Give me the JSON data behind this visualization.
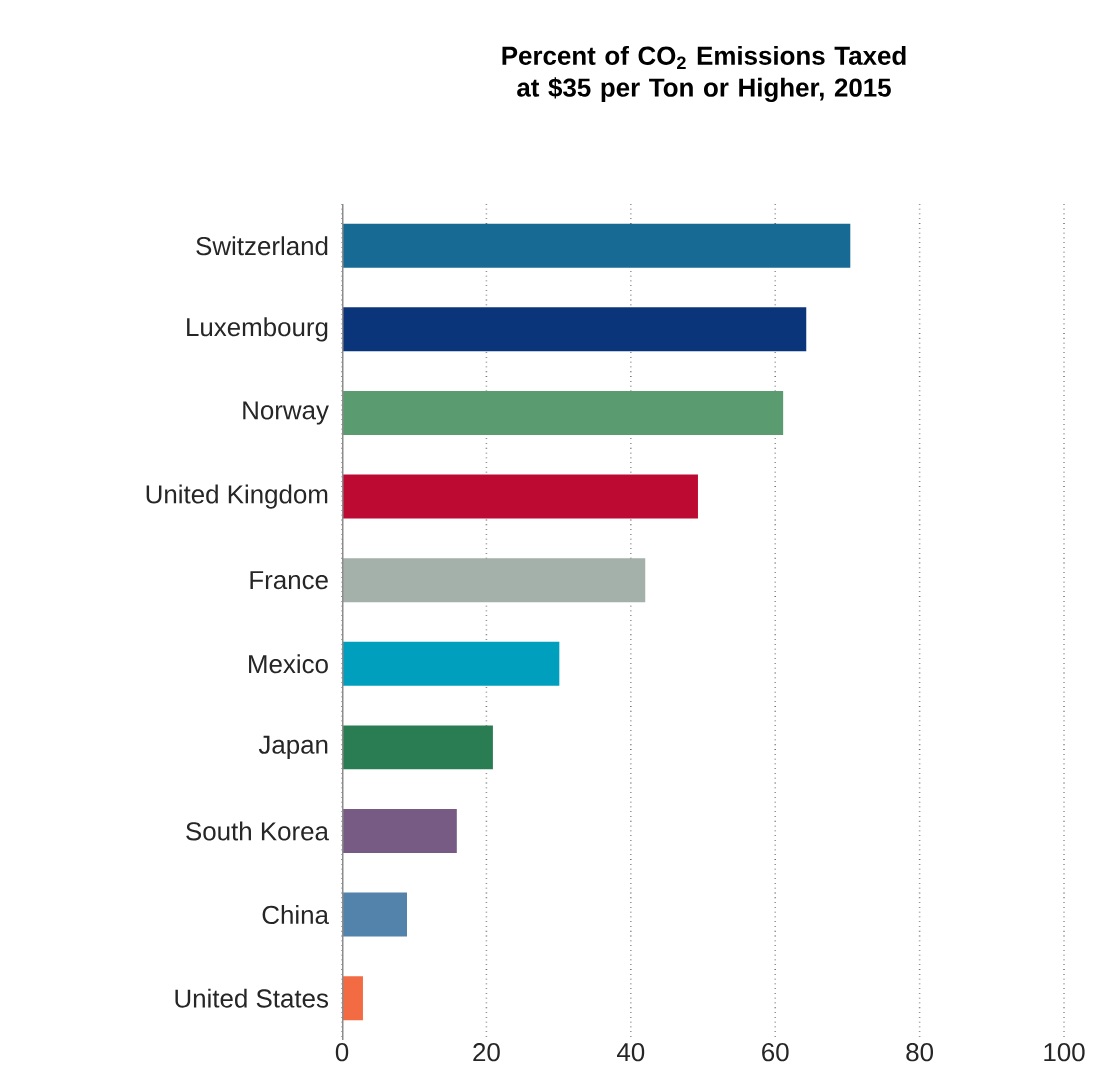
{
  "chart_data": {
    "type": "bar",
    "orientation": "horizontal",
    "title": "Percent of CO$_{2}$ Emissions Taxed at $35 per Ton or Higher, 2015",
    "categories": [
      "Switzerland",
      "Luxembourg",
      "Norway",
      "United Kingdom",
      "France",
      "Mexico",
      "Japan",
      "South Korea",
      "China",
      "United States"
    ],
    "values": [
      70.4,
      64.3,
      61.1,
      49.3,
      42.0,
      30.1,
      20.9,
      15.9,
      9.0,
      2.9
    ],
    "colors": [
      "#166a93",
      "#0b357a",
      "#5a9b70",
      "#bd0a32",
      "#a3b1aa",
      "#009fbd",
      "#2a7d53",
      "#785b85",
      "#5382aa",
      "#f26b43"
    ],
    "xlim": [
      0,
      100
    ],
    "xticks": [
      0,
      20,
      40,
      60,
      80,
      100
    ],
    "grid": "x"
  }
}
